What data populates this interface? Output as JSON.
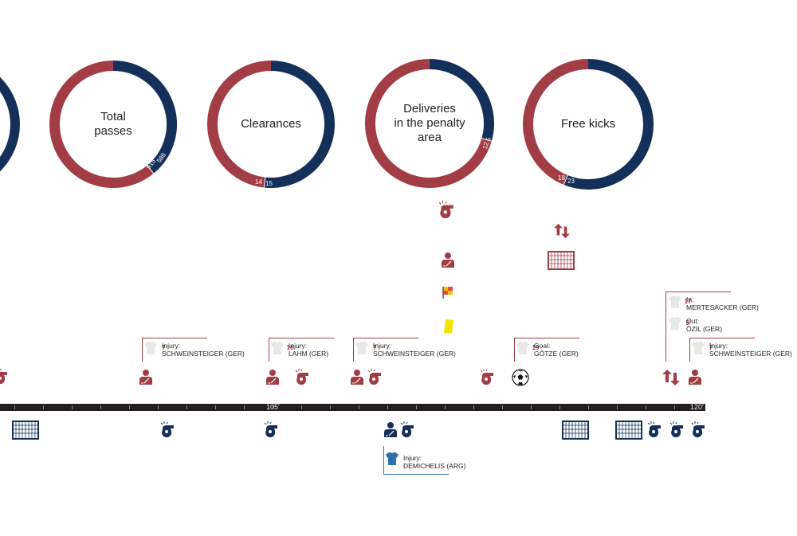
{
  "colors": {
    "red": "#a33d45",
    "navy": "#14305a",
    "blue": "#2f6fae",
    "timeline": "#231f20"
  },
  "chart_data": {
    "type": "pie",
    "donuts": [
      {
        "label": "Total\npasses",
        "values": [
          {
            "team": "red",
            "value": 915
          },
          {
            "team": "navy",
            "value": 586
          }
        ],
        "value_labels": [
          "915",
          "586"
        ]
      },
      {
        "label": "Clearances",
        "values": [
          {
            "team": "red",
            "value": 14
          },
          {
            "team": "navy",
            "value": 15
          }
        ],
        "value_labels": [
          "14",
          "15"
        ]
      },
      {
        "label": "Deliveries\nin the penalty\narea",
        "values": [
          {
            "team": "red",
            "value": 12
          },
          {
            "team": "navy",
            "value": 5
          }
        ],
        "value_labels": [
          "12",
          "5"
        ]
      },
      {
        "label": "Free kicks",
        "values": [
          {
            "team": "red",
            "value": 18
          },
          {
            "team": "navy",
            "value": 23
          }
        ],
        "value_labels": [
          "18",
          "23"
        ]
      }
    ],
    "timeline": {
      "tick_labels": [
        "105'",
        "120'"
      ]
    }
  },
  "annotations": [
    {
      "number": "7",
      "line1": "Injury:",
      "line2": "SCHWEINSTEIGER (GER)"
    },
    {
      "number": "16",
      "line1": "Injury:",
      "line2": "LAHM (GER)"
    },
    {
      "number": "7",
      "line1": "Injury:",
      "line2": "SCHWEINSTEIGER (GER)"
    },
    {
      "number": "19",
      "line1": "Goal:",
      "line2": "GÖTZE (GER)"
    },
    {
      "number": "17",
      "line1": "In:",
      "line2": "MERTESACKER (GER)"
    },
    {
      "number": "8",
      "line1": "Out:",
      "line2": "ÖZIL (GER)"
    },
    {
      "number": "7",
      "line1": "Injury:",
      "line2": "SCHWEINSTEIGER (GER)"
    },
    {
      "number": "15",
      "line1": "Injury:",
      "line2": "DEMICHELIS (ARG)"
    }
  ],
  "icons": {
    "whistle": "whistle-icon",
    "injury": "injured-player-icon",
    "goal_net": "goal-net-icon",
    "substitution": "substitution-icon",
    "offside_flag": "offside-flag-icon",
    "yellow_card": "yellow-card-icon",
    "ball": "football-icon"
  }
}
